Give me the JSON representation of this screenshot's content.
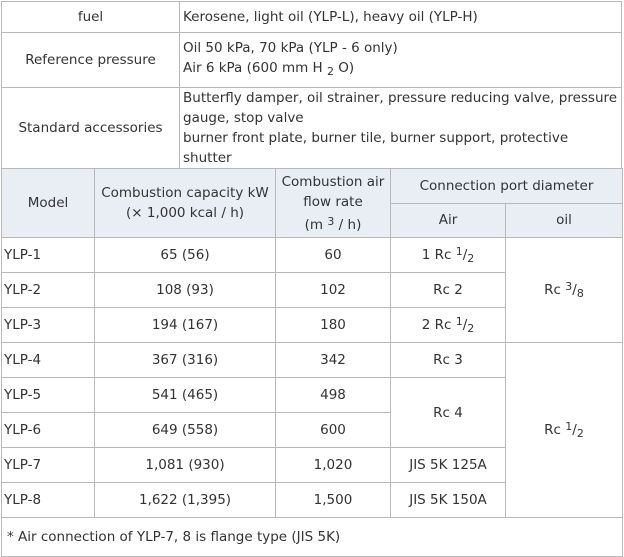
{
  "spec": {
    "fuel_label": "fuel",
    "fuel_value": "Kerosene, light oil (YLP-L), heavy oil (YLP-H)",
    "pressure_label": "Reference pressure",
    "pressure_line1": "Oil 50 kPa, 70 kPa (YLP - 6 only)",
    "pressure_line2_pre": "Air 6 kPa (600 mm H",
    "pressure_line2_sub": "2",
    "pressure_line2_post": "O)",
    "accessories_label": "Standard accessories",
    "accessories_line1": "Butterfly damper, oil strainer, pressure reducing valve, pressure gauge, stop valve",
    "accessories_line2": "burner front plate, burner tile, burner support, protective shutter"
  },
  "table": {
    "headers": {
      "model": "Model",
      "capacity_line1": "Combustion capacity kW",
      "capacity_line2": "(× 1,000 kcal / h)",
      "flow_line1": "Combustion air flow rate",
      "flow_unit_pre": "(m",
      "flow_unit_sup": "3",
      "flow_unit_post": "/ h)",
      "connection": "Connection port diameter",
      "air": "Air",
      "oil": "oil"
    },
    "rows": [
      {
        "model": "YLP-1",
        "capacity": "65 (56)",
        "flow": "60"
      },
      {
        "model": "YLP-2",
        "capacity": "108 (93)",
        "flow": "102"
      },
      {
        "model": "YLP-3",
        "capacity": "194 (167)",
        "flow": "180"
      },
      {
        "model": "YLP-4",
        "capacity": "367 (316)",
        "flow": "342"
      },
      {
        "model": "YLP-5",
        "capacity": "541 (465)",
        "flow": "498"
      },
      {
        "model": "YLP-6",
        "capacity": "649 (558)",
        "flow": "600"
      },
      {
        "model": "YLP-7",
        "capacity": "1,081 (930)",
        "flow": "1,020"
      },
      {
        "model": "YLP-8",
        "capacity": "1,622 (1,395)",
        "flow": "1,500"
      }
    ],
    "air": {
      "r1_pre": "1 Rc",
      "r1_sup": "1",
      "r1_sub": "2",
      "r2": "Rc 2",
      "r3_pre": "2 Rc",
      "r3_sup": "1",
      "r3_sub": "2",
      "r4": "Rc 3",
      "r56": "Rc 4",
      "r7": "JIS 5K 125A",
      "r8": "JIS 5K 150A"
    },
    "oil": {
      "g1_pre": "Rc",
      "g1_sup": "3",
      "g1_sub": "8",
      "g2_pre": "Rc",
      "g2_sup": "1",
      "g2_sub": "2"
    },
    "footnote": "* Air connection of YLP-7, 8 is flange type (JIS 5K)"
  }
}
